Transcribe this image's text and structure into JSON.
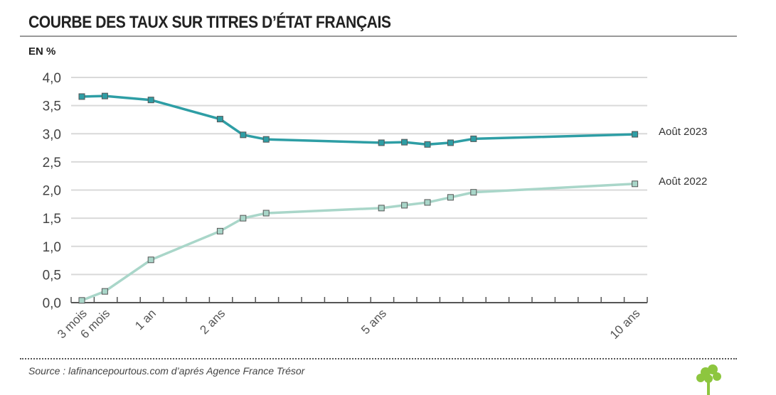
{
  "title": "COURBE DES TAUX SUR TITRES D’ÉTAT FRANÇAIS",
  "unit_label": "EN %",
  "source": "Source : lafinancepourtous.com d’aprés Agence France Trésor",
  "chart_data": {
    "type": "line",
    "title": "COURBE DES TAUX SUR TITRES D’ÉTAT FRANÇAIS",
    "ylabel": "EN %",
    "ylim": [
      0,
      4
    ],
    "yticks": [
      "0,0",
      "0,5",
      "1,0",
      "1,5",
      "2,0",
      "2,5",
      "3,0",
      "3,5",
      "4,0"
    ],
    "x_slots": 25,
    "x_tick_labels": [
      {
        "slot": 0,
        "label": "3 mois"
      },
      {
        "slot": 1,
        "label": "6 mois"
      },
      {
        "slot": 3,
        "label": "1 an"
      },
      {
        "slot": 6,
        "label": "2 ans"
      },
      {
        "slot": 13,
        "label": "5 ans"
      },
      {
        "slot": 24,
        "label": "10 ans"
      }
    ],
    "x": [
      0,
      1,
      3,
      6,
      7,
      8,
      13,
      14,
      15,
      16,
      17,
      24
    ],
    "series": [
      {
        "name": "Août 2023",
        "color": "#2e9ea5",
        "values": [
          3.66,
          3.67,
          3.6,
          3.26,
          2.98,
          2.9,
          2.84,
          2.85,
          2.81,
          2.84,
          2.91,
          2.99
        ]
      },
      {
        "name": "Août 2022",
        "color": "#a9d6c9",
        "values": [
          0.04,
          0.2,
          0.76,
          1.27,
          1.5,
          1.59,
          1.68,
          1.73,
          1.78,
          1.87,
          1.96,
          2.11
        ]
      }
    ],
    "grid": true,
    "legend": "right, at line ends"
  }
}
